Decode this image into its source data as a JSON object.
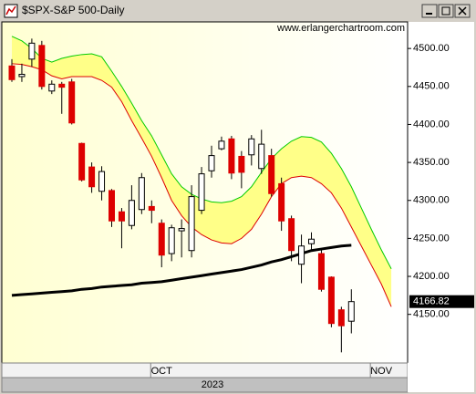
{
  "chart_data": {
    "type": "candlestick",
    "title": "$SPX-S&P 500-Daily",
    "source": "www.erlangerchartroom.com",
    "x_group_label": "2023",
    "categories": [
      null,
      null,
      null,
      null,
      null,
      null,
      null,
      null,
      null,
      null,
      null,
      null,
      null,
      null,
      null,
      "OCT",
      null,
      null,
      null,
      null,
      null,
      null,
      null,
      null,
      null,
      null,
      null,
      null,
      null,
      null,
      null,
      null,
      null,
      null,
      null,
      null,
      null,
      "NOV",
      null
    ],
    "open": [
      4477,
      4463,
      4486,
      4504,
      4444,
      4453,
      4456,
      4375,
      4344,
      4312,
      4313,
      4285,
      4267,
      4288,
      4292,
      4270,
      4230,
      4260,
      4234,
      4287,
      4339,
      4368,
      4381,
      4358,
      4360,
      4342,
      4359,
      4322,
      4276,
      4216,
      4243,
      4230,
      4199,
      4156,
      4141,
      null,
      null,
      null,
      null
    ],
    "high": [
      4486,
      4480,
      4513,
      4510,
      4458,
      4456,
      4460,
      4376,
      4350,
      4345,
      4315,
      4290,
      4320,
      4336,
      4300,
      4275,
      4268,
      4275,
      4320,
      4344,
      4372,
      4384,
      4385,
      4365,
      4386,
      4393,
      4368,
      4330,
      4280,
      4255,
      4258,
      4235,
      4200,
      4160,
      4183,
      null,
      null,
      null,
      null
    ],
    "low": [
      4456,
      4456,
      4476,
      4446,
      4440,
      4414,
      4400,
      4325,
      4310,
      4300,
      4265,
      4237,
      4262,
      4282,
      4270,
      4212,
      4220,
      4225,
      4225,
      4282,
      4330,
      4366,
      4328,
      4316,
      4346,
      4335,
      4305,
      4260,
      4220,
      4191,
      4235,
      4180,
      4133,
      4100,
      4125,
      null,
      null,
      null,
      null
    ],
    "close": [
      4459,
      4466,
      4507,
      4450,
      4453,
      4449,
      4402,
      4327,
      4318,
      4338,
      4273,
      4273,
      4300,
      4330,
      4287,
      4228,
      4264,
      4263,
      4305,
      4335,
      4359,
      4378,
      4336,
      4337,
      4381,
      4374,
      4309,
      4273,
      4234,
      4240,
      4249,
      4183,
      4138,
      4135,
      4166.82,
      null,
      null,
      null,
      null
    ],
    "up_color": "#ffffff",
    "down_color": "#dd0000",
    "band_fill": "#ffff88",
    "lines": [
      {
        "color": "#00cc00",
        "values": [
          4516,
          4510,
          4500,
          4487,
          4482,
          4487,
          4490,
          4492,
          4493,
          4489,
          4470,
          4450,
          4428,
          4405,
          4385,
          4360,
          4335,
          4318,
          4308,
          4302,
          4298,
          4297,
          4299,
          4305,
          4318,
          4337,
          4355,
          4368,
          4378,
          4384,
          4383,
          4377,
          4362,
          4342,
          4318,
          4290,
          4262,
          4235,
          4210
        ]
      },
      {
        "color": "#dd0000",
        "values": [
          4480,
          4479,
          4476,
          4472,
          4464,
          4460,
          4463,
          4463,
          4463,
          4458,
          4449,
          4430,
          4405,
          4382,
          4358,
          4330,
          4300,
          4280,
          4265,
          4255,
          4248,
          4244,
          4243,
          4250,
          4262,
          4282,
          4305,
          4322,
          4330,
          4332,
          4330,
          4322,
          4310,
          4290,
          4265,
          4240,
          4215,
          4190,
          4160
        ]
      },
      {
        "color": "#000000",
        "values": [
          4175,
          4176,
          4177,
          4178,
          4179,
          4180,
          4181,
          4183,
          4184,
          4186,
          4187,
          4188,
          4189,
          4191,
          4192,
          4193,
          4195,
          4197,
          4199,
          4201,
          4203,
          4205,
          4207,
          4209,
          4212,
          4215,
          4219,
          4222,
          4226,
          4230,
          4234,
          4236,
          4238,
          4240,
          4241,
          null,
          null,
          null,
          null
        ]
      }
    ],
    "ylim": [
      4086,
      4535
    ],
    "yticks": [
      {
        "value": 4150,
        "label": "4150.00"
      },
      {
        "value": 4200,
        "label": "4200.00"
      },
      {
        "value": 4250,
        "label": "4250.00"
      },
      {
        "value": 4300,
        "label": "4300.00"
      },
      {
        "value": 4350,
        "label": "4350.00"
      },
      {
        "value": 4400,
        "label": "4400.00"
      },
      {
        "value": 4450,
        "label": "4450.00"
      },
      {
        "value": 4500,
        "label": "4500.00"
      }
    ]
  }
}
